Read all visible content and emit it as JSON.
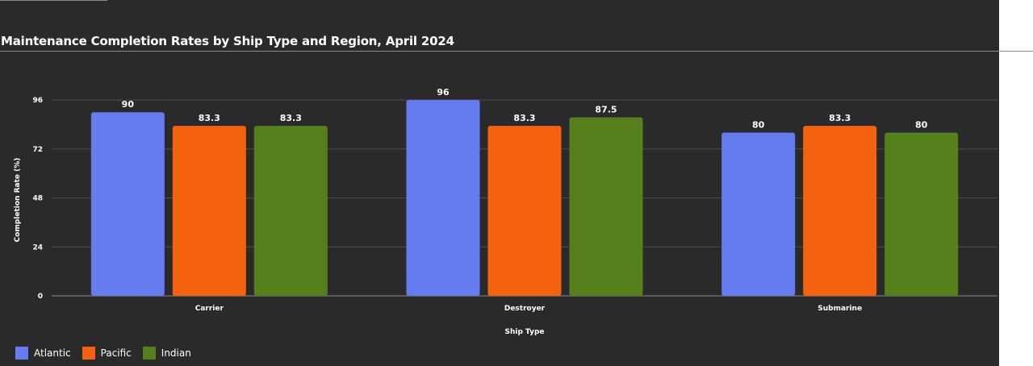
{
  "chart_data": {
    "type": "bar",
    "title": "Maintenance Completion Rates by Ship Type and Region, April 2024",
    "xlabel": "Ship Type",
    "ylabel": "Completion Rate (%)",
    "categories": [
      "Carrier",
      "Destroyer",
      "Submarine"
    ],
    "series": [
      {
        "name": "Atlantic",
        "color": "#657bf0",
        "values": [
          90,
          96,
          80
        ]
      },
      {
        "name": "Pacific",
        "color": "#f5620f",
        "values": [
          83.3,
          83.3,
          83.3
        ]
      },
      {
        "name": "Indian",
        "color": "#55801c",
        "values": [
          83.3,
          87.5,
          80
        ]
      }
    ],
    "ylim": [
      0,
      96
    ],
    "yticks": [
      0,
      24,
      48,
      72,
      96
    ],
    "grid": true,
    "legend_position": "bottom-left",
    "data_labels": true
  }
}
